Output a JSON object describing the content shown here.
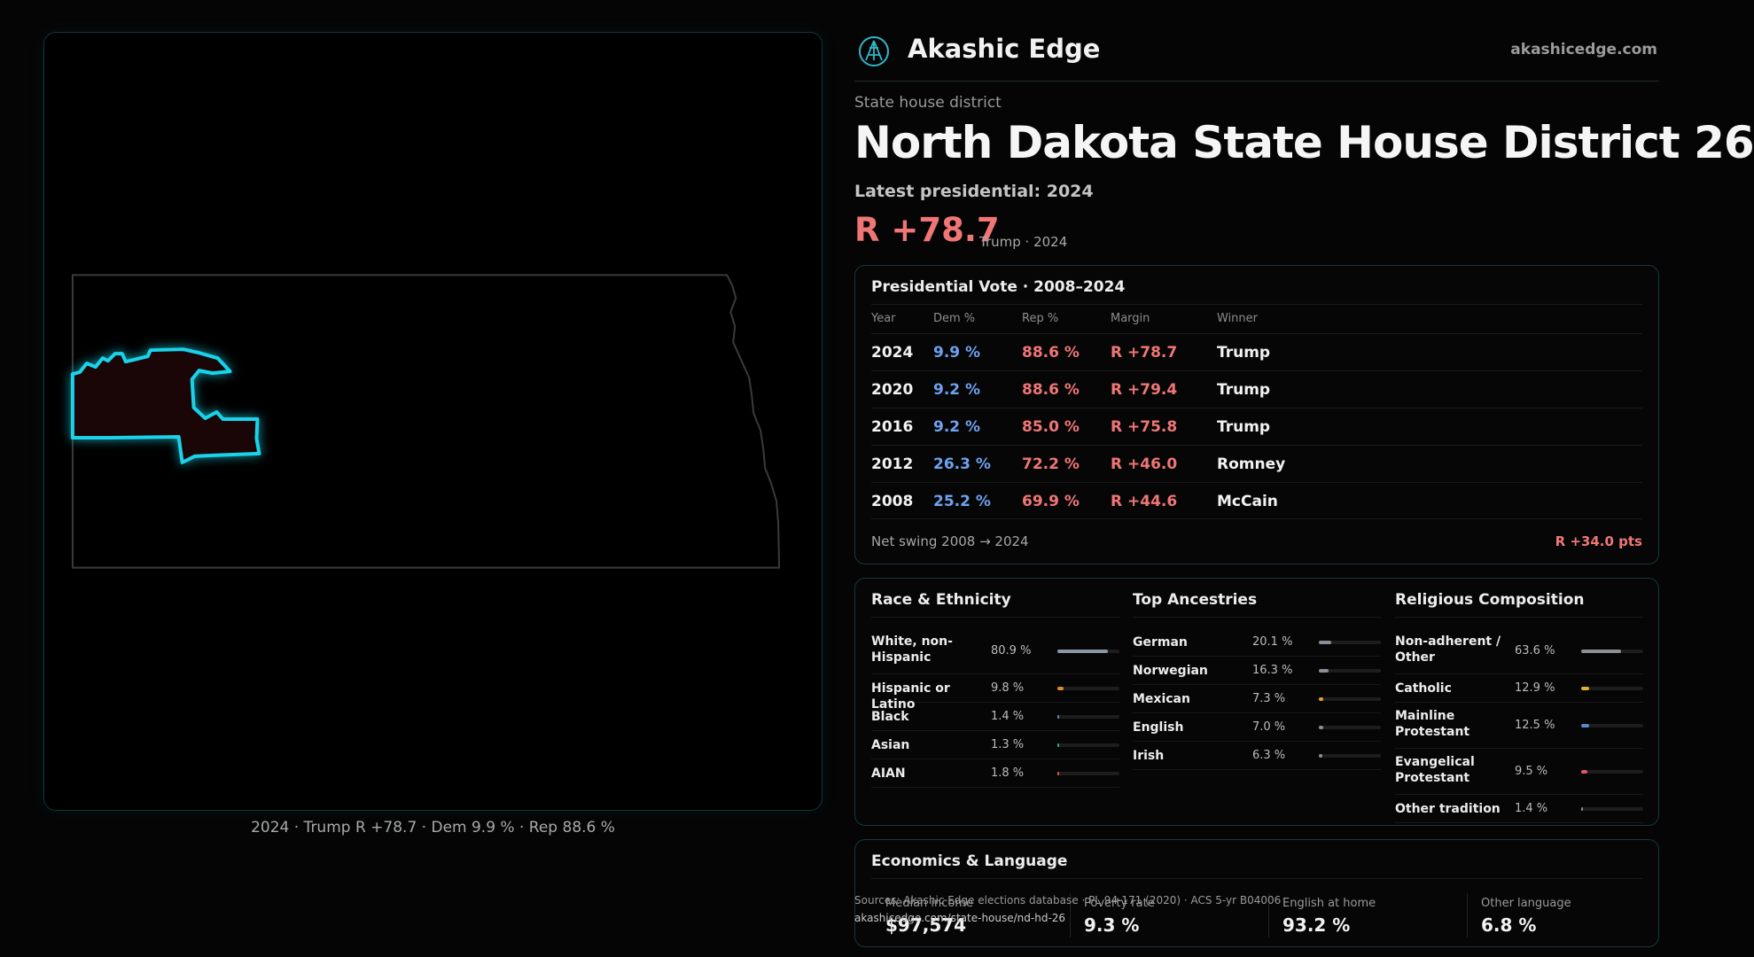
{
  "map": {
    "caption": "2024 · Trump R +78.7 · Dem 9.9 % · Rep 88.6 %"
  },
  "header": {
    "brand": "Akashic Edge",
    "site": "akashicedge.com"
  },
  "district": {
    "eyebrow": "State house district",
    "title": "North Dakota State House District 26",
    "latest": "Latest presidential: 2024",
    "margin": "R +78.7",
    "margin_sub": "Trump · 2024"
  },
  "vote": {
    "title": "Presidential Vote · 2008–2024",
    "headers": {
      "year": "Year",
      "dem": "Dem %",
      "rep": "Rep %",
      "margin": "Margin",
      "winner": "Winner"
    },
    "rows": [
      {
        "year": "2024",
        "dem": "9.9 %",
        "rep": "88.6 %",
        "margin": "R +78.7",
        "winner": "Trump"
      },
      {
        "year": "2020",
        "dem": "9.2 %",
        "rep": "88.6 %",
        "margin": "R +79.4",
        "winner": "Trump"
      },
      {
        "year": "2016",
        "dem": "9.2 %",
        "rep": "85.0 %",
        "margin": "R +75.8",
        "winner": "Trump"
      },
      {
        "year": "2012",
        "dem": "26.3 %",
        "rep": "72.2 %",
        "margin": "R +46.0",
        "winner": "Romney"
      },
      {
        "year": "2008",
        "dem": "25.2 %",
        "rep": "69.9 %",
        "margin": "R +44.6",
        "winner": "McCain"
      }
    ],
    "swing_label": "Net swing 2008 → 2024",
    "swing_value": "R +34.0 pts"
  },
  "race": {
    "title": "Race & Ethnicity",
    "items": [
      {
        "label": "White, non-Hispanic",
        "pct": "80.9 %",
        "value": 80.9,
        "color": "#8a96a6"
      },
      {
        "label": "Hispanic or Latino",
        "pct": "9.8 %",
        "value": 9.8,
        "color": "#e0892c"
      },
      {
        "label": "Black",
        "pct": "1.4 %",
        "value": 1.4,
        "color": "#5a86d6"
      },
      {
        "label": "Asian",
        "pct": "1.3 %",
        "value": 1.3,
        "color": "#2fb08a"
      },
      {
        "label": "AIAN",
        "pct": "1.8 %",
        "value": 1.8,
        "color": "#d0603c"
      }
    ]
  },
  "ancestry": {
    "title": "Top Ancestries",
    "items": [
      {
        "label": "German",
        "pct": "20.1 %",
        "value": 20.1,
        "color": "#8a8f98"
      },
      {
        "label": "Norwegian",
        "pct": "16.3 %",
        "value": 16.3,
        "color": "#8a8f98"
      },
      {
        "label": "Mexican",
        "pct": "7.3 %",
        "value": 7.3,
        "color": "#e0a22c"
      },
      {
        "label": "English",
        "pct": "7.0 %",
        "value": 7.0,
        "color": "#8a8f98"
      },
      {
        "label": "Irish",
        "pct": "6.3 %",
        "value": 6.3,
        "color": "#8a8f98"
      }
    ]
  },
  "religion": {
    "title": "Religious Composition",
    "items": [
      {
        "label": "Non-adherent / Other",
        "pct": "63.6 %",
        "value": 63.6,
        "color": "#8a8f98"
      },
      {
        "label": "Catholic",
        "pct": "12.9 %",
        "value": 12.9,
        "color": "#e0b02c"
      },
      {
        "label": "Mainline Protestant",
        "pct": "12.5 %",
        "value": 12.5,
        "color": "#5a86d6"
      },
      {
        "label": "Evangelical Protestant",
        "pct": "9.5 %",
        "value": 9.5,
        "color": "#e05a5a"
      },
      {
        "label": "Other tradition",
        "pct": "1.4 %",
        "value": 1.4,
        "color": "#8a8f98"
      }
    ]
  },
  "economics": {
    "title": "Economics & Language",
    "cells": [
      {
        "label": "Median income",
        "value": "$97,574"
      },
      {
        "label": "Poverty rate",
        "value": "9.3 %"
      },
      {
        "label": "English at home",
        "value": "93.2 %"
      },
      {
        "label": "Other language",
        "value": "6.8 %"
      }
    ]
  },
  "source": {
    "text": "Sources: Akashic Edge elections database · PL 94-171 (2020) · ACS 5-yr B04006",
    "url": "akashicedge.com/state-house/nd-hd-26"
  }
}
